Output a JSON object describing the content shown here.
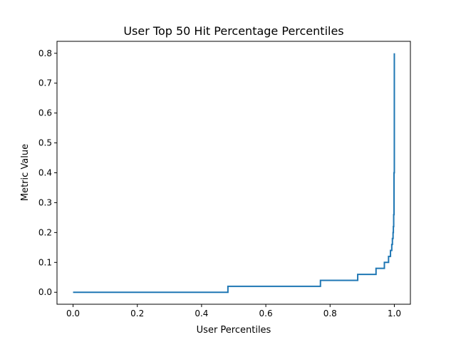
{
  "chart_data": {
    "type": "line",
    "title": "User Top 50 Hit Percentage Percentiles",
    "xlabel": "User Percentiles",
    "ylabel": "Metric Value",
    "xlim": [
      -0.05,
      1.05
    ],
    "ylim": [
      -0.04,
      0.84
    ],
    "xticks": [
      0.0,
      0.2,
      0.4,
      0.6,
      0.8,
      1.0
    ],
    "xtick_labels": [
      "0.0",
      "0.2",
      "0.4",
      "0.6",
      "0.8",
      "1.0"
    ],
    "yticks": [
      0.0,
      0.1,
      0.2,
      0.3,
      0.4,
      0.5,
      0.6,
      0.7,
      0.8
    ],
    "ytick_labels": [
      "0.0",
      "0.1",
      "0.2",
      "0.3",
      "0.4",
      "0.5",
      "0.6",
      "0.7",
      "0.8"
    ],
    "grid": false,
    "series": [
      {
        "color": "#1f77b4",
        "drawstyle": "steps-post",
        "x": [
          0.0,
          0.482,
          0.77,
          0.886,
          0.943,
          0.969,
          0.982,
          0.988,
          0.992,
          0.994,
          0.996,
          0.997,
          0.998,
          0.999,
          1.0,
          1.0
        ],
        "y": [
          0.0,
          0.02,
          0.04,
          0.06,
          0.08,
          0.1,
          0.12,
          0.14,
          0.16,
          0.18,
          0.2,
          0.22,
          0.26,
          0.4,
          0.6,
          0.8
        ]
      }
    ]
  }
}
